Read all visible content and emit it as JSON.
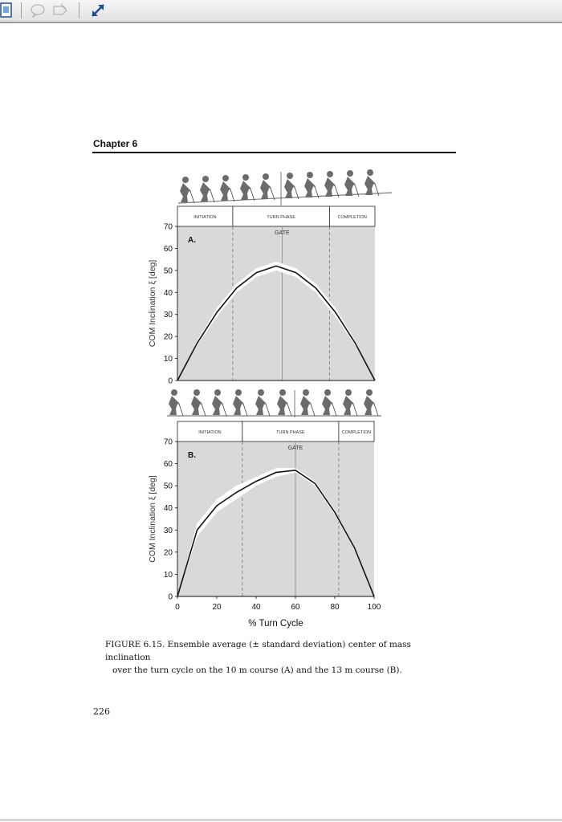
{
  "chapter": "Chapter 6",
  "caption": {
    "line1": "FIGURE 6.15.  Ensemble average (± standard deviation) center of mass inclination",
    "line2": "over the turn cycle on the 10 m course (A) and the 13 m course (B)."
  },
  "page_number": "226",
  "toolbar": {
    "icons": [
      "fit-page-icon",
      "comment-icon",
      "tag-icon",
      "expand-icon"
    ]
  },
  "chart_data": [
    {
      "type": "line",
      "panel_label": "A.",
      "ylabel": "COM Inclination ξ [deg]",
      "xlabel": "",
      "xlim": [
        0,
        100
      ],
      "ylim": [
        0,
        70
      ],
      "yticks": [
        0,
        10,
        20,
        30,
        40,
        50,
        60,
        70
      ],
      "xticks": [],
      "phases": [
        {
          "label": "INITIATION",
          "start": 0,
          "end": 28
        },
        {
          "label": "TURN PHASE",
          "start": 28,
          "end": 77
        },
        {
          "label": "COMPLETION",
          "start": 77,
          "end": 100
        }
      ],
      "gate": {
        "label": "GATE",
        "x": 53
      },
      "series": [
        {
          "x": [
            0,
            10,
            20,
            30,
            40,
            50,
            60,
            70,
            80,
            90,
            100
          ],
          "y": [
            0,
            17,
            31,
            42,
            49,
            52,
            49,
            42,
            31,
            17,
            0
          ],
          "sd": [
            0,
            1,
            2,
            2,
            2,
            2,
            2,
            2,
            2,
            1,
            0
          ]
        }
      ]
    },
    {
      "type": "line",
      "panel_label": "B.",
      "ylabel": "COM Inclination ξ [deg]",
      "xlabel": "% Turn Cycle",
      "xlim": [
        0,
        100
      ],
      "ylim": [
        0,
        70
      ],
      "yticks": [
        0,
        10,
        20,
        30,
        40,
        50,
        60,
        70
      ],
      "xticks": [
        0,
        20,
        40,
        60,
        80,
        100
      ],
      "phases": [
        {
          "label": "INITIATION",
          "start": 0,
          "end": 33
        },
        {
          "label": "TURN PHASE",
          "start": 33,
          "end": 82
        },
        {
          "label": "COMPLETION",
          "start": 82,
          "end": 100
        }
      ],
      "gate": {
        "label": "GATE",
        "x": 60
      },
      "series": [
        {
          "x": [
            0,
            10,
            20,
            30,
            40,
            50,
            60,
            70,
            80,
            90,
            100
          ],
          "y": [
            0,
            30,
            41,
            47,
            52,
            56,
            57,
            51,
            38,
            22,
            0
          ],
          "sd": [
            0,
            3,
            3,
            3,
            2,
            2,
            1,
            1,
            1,
            1,
            0
          ]
        }
      ]
    }
  ]
}
